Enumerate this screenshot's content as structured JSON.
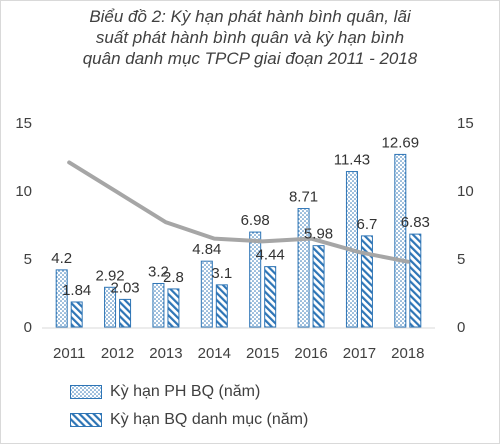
{
  "chart_data": {
    "type": "bar",
    "title_lines": [
      "Biểu đồ 2: Kỳ hạn phát hành bình quân, lãi",
      "suất phát hành bình quân và kỳ hạn bình",
      "quân danh mục TPCP giai đoạn 2011 - 2018"
    ],
    "categories": [
      "2011",
      "2012",
      "2013",
      "2014",
      "2015",
      "2016",
      "2017",
      "2018"
    ],
    "series": [
      {
        "name": "Kỳ hạn PH BQ (năm)",
        "type": "bar",
        "values": [
          4.2,
          2.92,
          3.2,
          4.84,
          6.98,
          8.71,
          11.43,
          12.69
        ],
        "labels": [
          "4.2",
          "2.92",
          "3.2",
          "4.84",
          "6.98",
          "8.71",
          "11.43",
          "12.69"
        ],
        "color": "#2e75b6"
      },
      {
        "name": "Kỳ hạn BQ danh mục (năm)",
        "type": "bar",
        "values": [
          1.84,
          2.03,
          2.8,
          3.1,
          4.44,
          5.98,
          6.7,
          6.83
        ],
        "labels": [
          "1.84",
          "2.03",
          "2.8",
          "3.1",
          "4.44",
          "5.98",
          "6.7",
          "6.83"
        ],
        "color": "#2e75b6"
      },
      {
        "type": "line",
        "axis": "right",
        "values": [
          12.1,
          9.9,
          7.7,
          6.5,
          6.3,
          6.5,
          5.5,
          4.8
        ],
        "color": "#a6a6a6"
      }
    ],
    "y_left": {
      "min": 0,
      "max": 15,
      "ticks": [
        "0",
        "5",
        "10",
        "15"
      ]
    },
    "y_right": {
      "min": 0,
      "max": 15,
      "ticks": [
        "0",
        "5",
        "10",
        "15"
      ]
    },
    "grid": false,
    "legend_position": "bottom"
  }
}
